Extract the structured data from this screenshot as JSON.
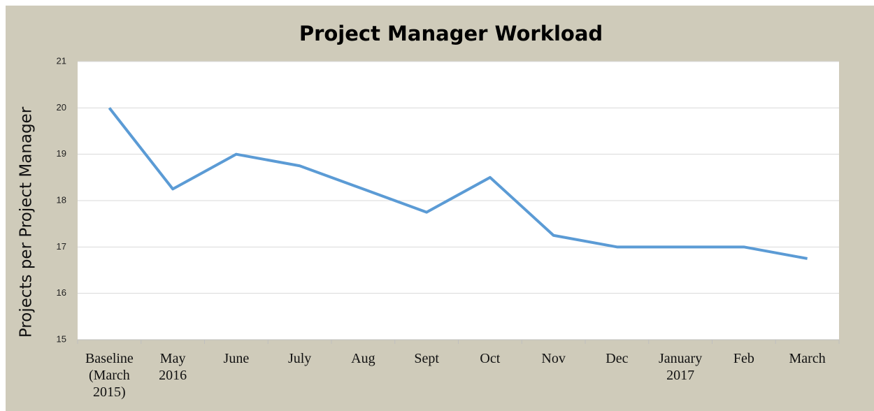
{
  "chart_data": {
    "type": "line",
    "title": "Project Manager Workload",
    "y_label": "Projects per Project Manager",
    "categories": [
      "Baseline\n(March\n2015)",
      "May\n2016",
      "June",
      "July",
      "Aug",
      "Sept",
      "Oct",
      "Nov",
      "Dec",
      "January\n2017",
      "Feb",
      "March"
    ],
    "series": [
      {
        "name": "Projects per Project Manager",
        "color": "#5b9bd5",
        "values": [
          20,
          18.25,
          19,
          18.75,
          18.25,
          17.75,
          18.5,
          17.25,
          17,
          17,
          17,
          16.75
        ]
      }
    ],
    "ylim": [
      15,
      21
    ],
    "yticks": [
      15,
      16,
      17,
      18,
      19,
      20,
      21
    ],
    "grid": true
  }
}
